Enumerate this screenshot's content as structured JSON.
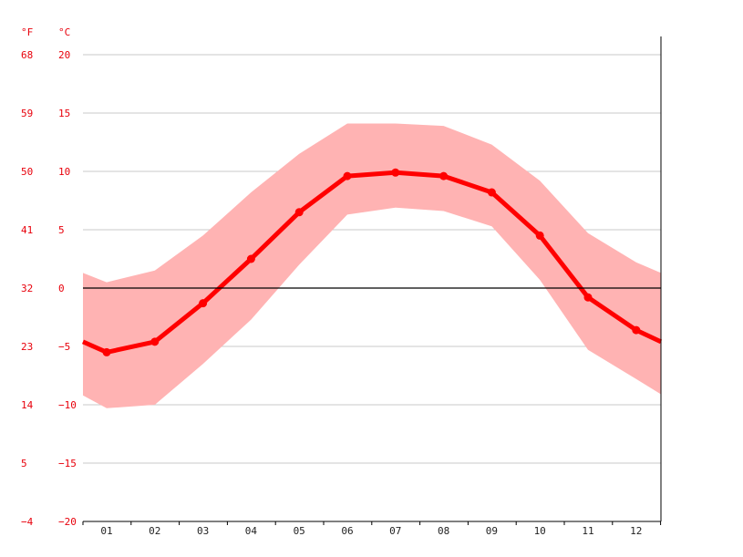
{
  "chart_data": {
    "type": "line",
    "title": "",
    "units": {
      "fahrenheit": "°F",
      "celsius": "°C"
    },
    "categories": [
      "01",
      "02",
      "03",
      "04",
      "05",
      "06",
      "07",
      "08",
      "09",
      "10",
      "11",
      "12"
    ],
    "series": [
      {
        "values": [
          -5.5,
          -4.6,
          -1.3,
          2.5,
          6.5,
          9.6,
          9.9,
          9.6,
          8.2,
          4.5,
          -0.8,
          -3.6
        ]
      }
    ],
    "range_min": [
      -10.3,
      -10.0,
      -6.5,
      -2.7,
      2.0,
      6.3,
      6.9,
      6.6,
      5.3,
      0.7,
      -5.3,
      -7.8
    ],
    "range_max": [
      0.5,
      1.5,
      4.5,
      8.2,
      11.5,
      14.1,
      14.1,
      13.9,
      12.3,
      9.2,
      4.7,
      2.2
    ],
    "edge_values": {
      "start": {
        "mean": -4.6,
        "min": -9.2,
        "max": 1.3
      },
      "end": {
        "mean": -4.6,
        "min": -9.1,
        "max": 1.3
      }
    },
    "ylim": [
      -20,
      20
    ],
    "yticks_c": [
      "20",
      "15",
      "10",
      "5",
      "0",
      "−5",
      "−10",
      "−15",
      "−20"
    ],
    "yticks_f": [
      "68",
      "59",
      "50",
      "41",
      "32",
      "23",
      "14",
      "5",
      "−4"
    ],
    "grid": true,
    "colors": {
      "line": "#ff0000",
      "band": "#ffb3b3",
      "axis_label": "#e8000b",
      "grid": "#c8c8c8",
      "zero_line": "#000000"
    }
  }
}
